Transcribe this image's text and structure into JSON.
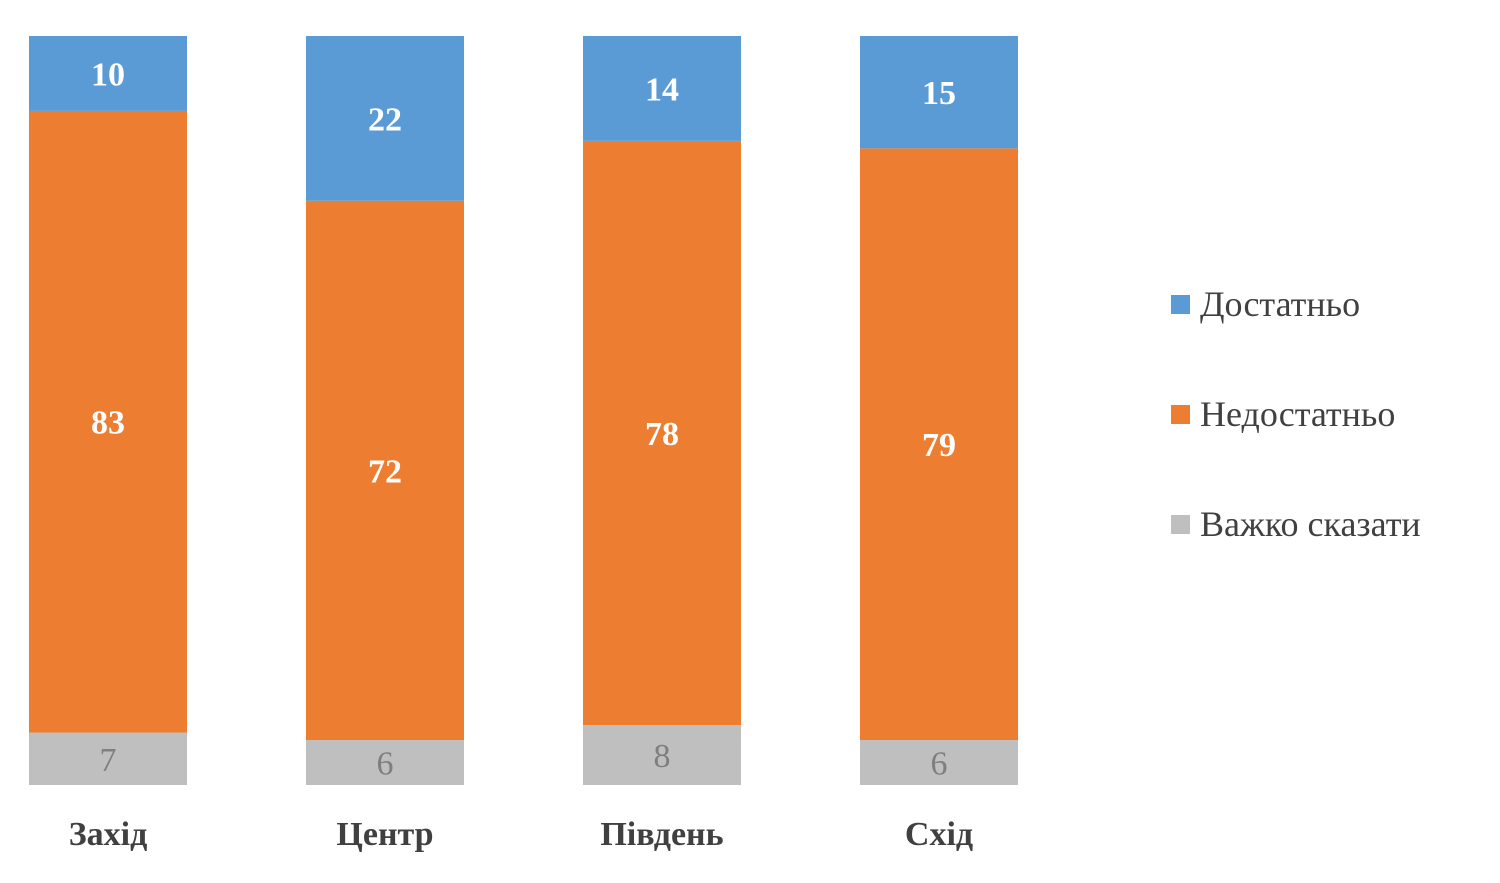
{
  "chart_data": {
    "type": "bar",
    "stacked": true,
    "normalized_percent": true,
    "categories": [
      "Захід",
      "Центр",
      "Південь",
      "Схід"
    ],
    "series": [
      {
        "name": "Важко сказати",
        "values": [
          7,
          6,
          8,
          6
        ],
        "color": "#bfbfbf"
      },
      {
        "name": "Недостатньо",
        "values": [
          83,
          72,
          78,
          79
        ],
        "color": "#ed7d31"
      },
      {
        "name": "Достатньо",
        "values": [
          10,
          22,
          14,
          15
        ],
        "color": "#5b9bd5"
      }
    ],
    "legend_order": [
      "Достатньо",
      "Недостатньо",
      "Важко сказати"
    ],
    "legend_position": "right",
    "title": "",
    "xlabel": "",
    "ylabel": "",
    "grid": false,
    "data_labels": true
  }
}
